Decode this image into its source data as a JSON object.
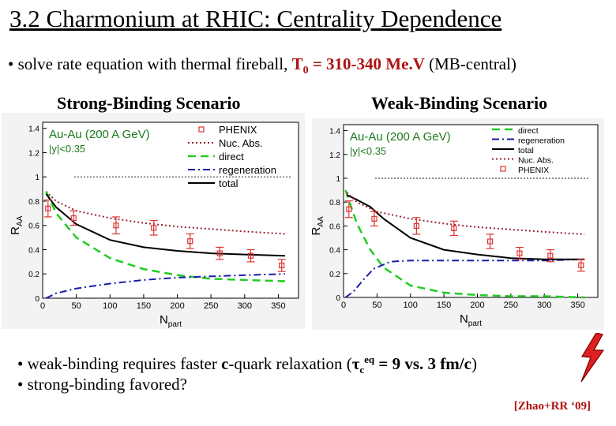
{
  "slide": {
    "title": "3.2 Charmonium at RHIC: Centrality Dependence",
    "bullet_top_prefix": "• solve rate equation with thermal fireball, ",
    "bullet_top_T0_sym": "T",
    "bullet_top_T0_sub": "0",
    "bullet_top_value": " = 310-340 Me.V",
    "bullet_top_suffix": " (MB-central)",
    "scenario_left": "Strong-Binding Scenario",
    "scenario_right": "Weak-Binding Scenario",
    "bullet_b1_prefix": "• weak-binding requires faster ",
    "bullet_b1_c": "c",
    "bullet_b1_mid": "-quark relaxation (",
    "bullet_b1_tau": "τ",
    "bullet_b1_tau_sub": "c",
    "bullet_b1_tau_sup": "eq",
    "bullet_b1_values": " = 9  vs.  3 fm/c",
    "bullet_b1_end": ")",
    "bullet_b2": "• strong-binding favored?",
    "citation": "[Zhao+RR ‘09]"
  },
  "colors": {
    "title_red": "#b01010",
    "direct": "#22cc22",
    "regeneration": "#1a1aaa",
    "nuc_abs": "#992233",
    "total": "#000000",
    "phenix": "#dd3333",
    "bolt": "#e02020"
  },
  "chart_data": [
    {
      "type": "line",
      "id": "strong-binding",
      "system_label": "Au-Au (200 A GeV)",
      "rapidity_label": "|y|<0.35",
      "xlabel_main": "N",
      "xlabel_sub": "part",
      "ylabel_main": "R",
      "ylabel_sub": "AA",
      "xlim": [
        0,
        380
      ],
      "ylim": [
        0,
        1.45
      ],
      "xticks": [
        0,
        50,
        100,
        150,
        200,
        250,
        300,
        350
      ],
      "yticks": [
        0,
        0.2,
        0.4,
        0.6,
        0.8,
        1,
        1.2,
        1.4
      ],
      "ytick_labels": [
        "0",
        "0.2",
        "0.4",
        "0.6",
        "0.8",
        "1",
        "1.2",
        "1.4"
      ],
      "legend_position": "top-right",
      "legend_order": [
        "PHENIX",
        "Nuc. Abs.",
        "direct",
        "regeneration",
        "total"
      ],
      "series": [
        {
          "name": "Nuc. Abs.",
          "style": "dotted",
          "x": [
            5,
            20,
            50,
            100,
            150,
            200,
            250,
            300,
            360
          ],
          "y": [
            0.88,
            0.8,
            0.72,
            0.66,
            0.62,
            0.59,
            0.57,
            0.55,
            0.53
          ]
        },
        {
          "name": "direct",
          "style": "dashed",
          "x": [
            5,
            20,
            50,
            100,
            150,
            200,
            250,
            300,
            360
          ],
          "y": [
            0.88,
            0.7,
            0.5,
            0.33,
            0.24,
            0.19,
            0.16,
            0.15,
            0.14
          ]
        },
        {
          "name": "regeneration",
          "style": "dashdot",
          "x": [
            5,
            20,
            50,
            100,
            150,
            200,
            250,
            300,
            360
          ],
          "y": [
            0.0,
            0.04,
            0.08,
            0.12,
            0.15,
            0.17,
            0.18,
            0.19,
            0.2
          ]
        },
        {
          "name": "total",
          "style": "solid",
          "x": [
            5,
            20,
            50,
            100,
            150,
            200,
            250,
            300,
            360
          ],
          "y": [
            0.86,
            0.75,
            0.61,
            0.48,
            0.42,
            0.39,
            0.37,
            0.36,
            0.35
          ]
        }
      ],
      "phenix": {
        "name": "PHENIX",
        "x": [
          8,
          46,
          109,
          165,
          219,
          263,
          309,
          355
        ],
        "y": [
          0.74,
          0.66,
          0.6,
          0.58,
          0.47,
          0.37,
          0.35,
          0.27
        ],
        "err": [
          0.07,
          0.06,
          0.07,
          0.06,
          0.06,
          0.05,
          0.05,
          0.05
        ]
      }
    },
    {
      "type": "line",
      "id": "weak-binding",
      "system_label": "Au-Au (200 A GeV)",
      "rapidity_label": "|y|<0.35",
      "xlabel_main": "N",
      "xlabel_sub": "part",
      "ylabel_main": "R",
      "ylabel_sub": "AA",
      "xlim": [
        0,
        380
      ],
      "ylim": [
        0,
        1.45
      ],
      "xticks": [
        0,
        50,
        100,
        150,
        200,
        250,
        300,
        350
      ],
      "yticks": [
        0,
        0.2,
        0.4,
        0.6,
        0.8,
        1,
        1.2,
        1.4
      ],
      "ytick_labels": [
        "0",
        "0.2",
        "0.4",
        "0.6",
        "0.8",
        "1",
        "1.2",
        "1.4"
      ],
      "legend_position": "top-right",
      "legend_order": [
        "direct",
        "regeneration",
        "total",
        "Nuc. Abs.",
        "PHENIX"
      ],
      "series": [
        {
          "name": "direct",
          "style": "dashed",
          "x": [
            3,
            20,
            40,
            60,
            100,
            150,
            200,
            250,
            300,
            360
          ],
          "y": [
            0.9,
            0.62,
            0.4,
            0.25,
            0.1,
            0.04,
            0.02,
            0.01,
            0.01,
            0.0
          ]
        },
        {
          "name": "regeneration",
          "style": "dashdot",
          "x": [
            3,
            15,
            30,
            45,
            70,
            100,
            150,
            200,
            250,
            300,
            360
          ],
          "y": [
            0.0,
            0.05,
            0.15,
            0.24,
            0.3,
            0.31,
            0.31,
            0.31,
            0.31,
            0.31,
            0.32
          ]
        },
        {
          "name": "total",
          "style": "solid",
          "x": [
            5,
            20,
            40,
            60,
            100,
            150,
            200,
            250,
            300,
            360
          ],
          "y": [
            0.86,
            0.82,
            0.76,
            0.66,
            0.5,
            0.4,
            0.36,
            0.33,
            0.32,
            0.32
          ]
        },
        {
          "name": "Nuc. Abs.",
          "style": "dotted",
          "x": [
            5,
            20,
            50,
            100,
            150,
            200,
            250,
            300,
            360
          ],
          "y": [
            0.88,
            0.8,
            0.72,
            0.66,
            0.62,
            0.59,
            0.57,
            0.55,
            0.53
          ]
        }
      ],
      "phenix": {
        "name": "PHENIX",
        "x": [
          8,
          46,
          109,
          165,
          219,
          263,
          309,
          355
        ],
        "y": [
          0.74,
          0.66,
          0.6,
          0.58,
          0.47,
          0.37,
          0.35,
          0.27
        ],
        "err": [
          0.07,
          0.06,
          0.07,
          0.06,
          0.06,
          0.05,
          0.05,
          0.05
        ]
      }
    }
  ]
}
